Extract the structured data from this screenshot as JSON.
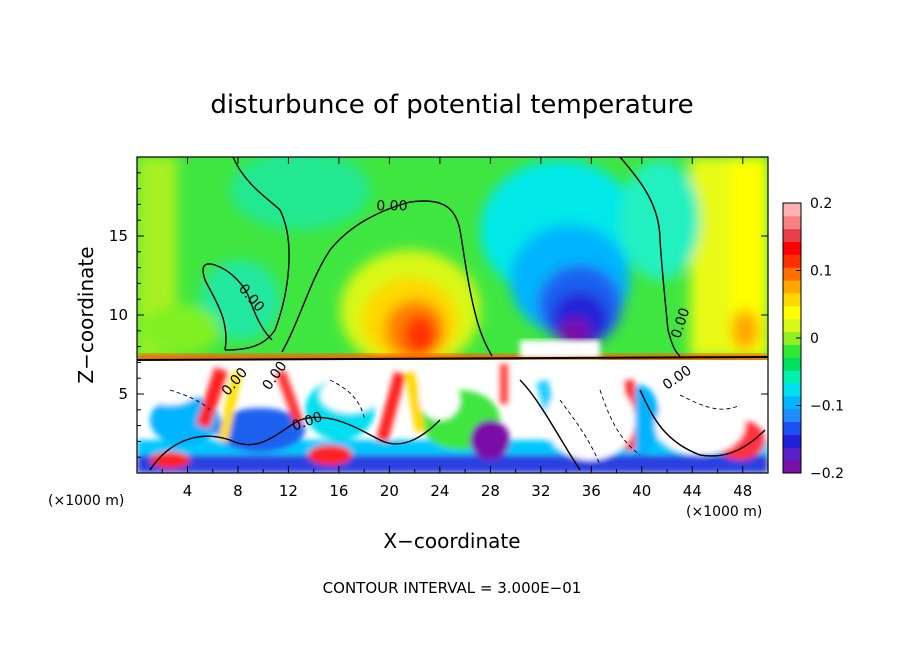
{
  "chart_data": {
    "type": "heatmap",
    "title": "disturbunce of potential temperature",
    "xlabel": "X−coordinate",
    "ylabel": "Z−coordinate",
    "x_unit_left": "(×1000 m)",
    "x_unit_right": "(×1000 m)",
    "xlim": [
      0,
      50
    ],
    "ylim": [
      0,
      20
    ],
    "x_ticks": [
      4,
      8,
      12,
      16,
      20,
      24,
      28,
      32,
      36,
      40,
      44,
      48
    ],
    "y_ticks": [
      5,
      10,
      15
    ],
    "colorbar": {
      "vmin": -0.2,
      "vmax": 0.2,
      "tick_values": [
        0.2,
        0.1,
        0,
        -0.1,
        -0.2
      ],
      "tick_labels": [
        "0.2",
        "0.1",
        "0",
        "−0.1",
        "−0.2"
      ],
      "colors": [
        "#7a0ea8",
        "#5a1fc8",
        "#2020d8",
        "#1e50f0",
        "#1e8cff",
        "#00b4ff",
        "#00e0f0",
        "#00f0b0",
        "#00e060",
        "#30e830",
        "#90f020",
        "#d8f818",
        "#ffff00",
        "#ffd800",
        "#ffa800",
        "#ff7000",
        "#ff3000",
        "#ff0000",
        "#e8404a",
        "#f88080",
        "#ffb0b0"
      ]
    },
    "contour_labels": [
      "0.00",
      "0.00",
      "0.00",
      "0.00",
      "0.00",
      "0.00",
      "0.00"
    ],
    "footer": "CONTOUR INTERVAL = 3.000E−01"
  }
}
